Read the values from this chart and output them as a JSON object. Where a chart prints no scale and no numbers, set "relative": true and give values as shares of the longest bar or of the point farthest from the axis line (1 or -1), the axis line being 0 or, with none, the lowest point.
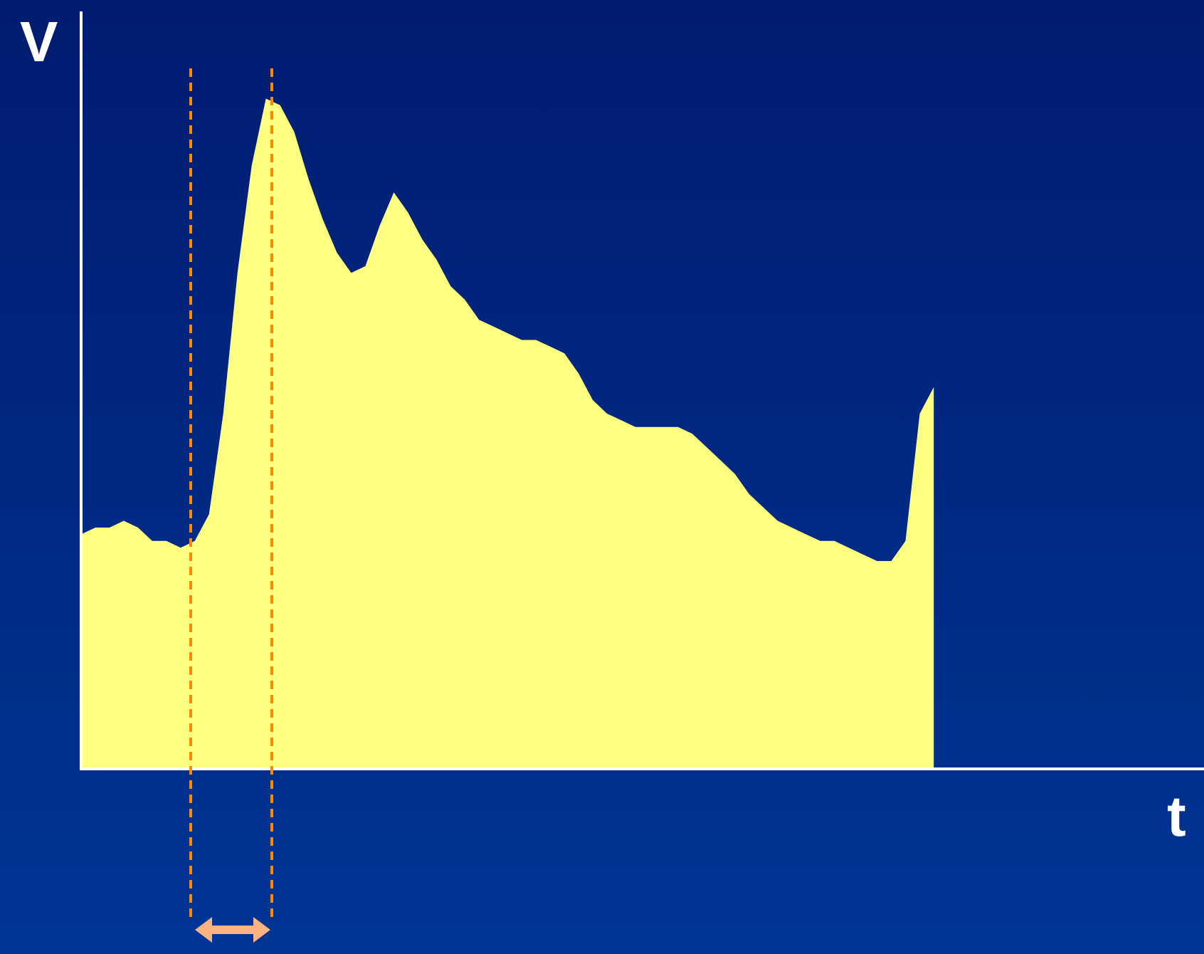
{
  "chart_data": {
    "type": "area",
    "xlabel": "t",
    "ylabel": "V",
    "relative": true,
    "categories": [
      null,
      null,
      null,
      null,
      null,
      null,
      null,
      null,
      null,
      null,
      null,
      null,
      null,
      null,
      null,
      null,
      null,
      null,
      null,
      null,
      null,
      null,
      null,
      null,
      null,
      null,
      null,
      null,
      null,
      null,
      null,
      null,
      null,
      null,
      null,
      null,
      null,
      null,
      null,
      null,
      null,
      null,
      null,
      null,
      null,
      null,
      null,
      null,
      null,
      null,
      null,
      null,
      null,
      null,
      null,
      null,
      null,
      null,
      null,
      null,
      null,
      null,
      null,
      null,
      null,
      null,
      null,
      null,
      null,
      null,
      null,
      null,
      null,
      null,
      null,
      null,
      null,
      null,
      null,
      null
    ],
    "series": [
      {
        "color": "#ffff80",
        "values": [
          0.35,
          0.36,
          0.36,
          0.37,
          0.36,
          0.34,
          0.34,
          0.33,
          0.34,
          0.38,
          0.53,
          0.74,
          0.9,
          1,
          0.99,
          0.95,
          0.88,
          0.82,
          0.77,
          0.74,
          0.75,
          0.81,
          0.86,
          0.83,
          0.79,
          0.76,
          0.72,
          0.7,
          0.67,
          0.66,
          0.65,
          0.64,
          0.64,
          0.63,
          0.62,
          0.59,
          0.55,
          0.53,
          0.52,
          0.51,
          0.51,
          0.51,
          0.51,
          0.5,
          0.48,
          0.46,
          0.44,
          0.41,
          0.39,
          0.37,
          0.36,
          0.35,
          0.34,
          0.34,
          0.33,
          0.32,
          0.31,
          0.31,
          0.34,
          0.53,
          0.57,
          null,
          null,
          null,
          null,
          null,
          null,
          null,
          null,
          null,
          null,
          null,
          null,
          null,
          null,
          null,
          null,
          null,
          null,
          null
        ]
      }
    ]
  }
}
